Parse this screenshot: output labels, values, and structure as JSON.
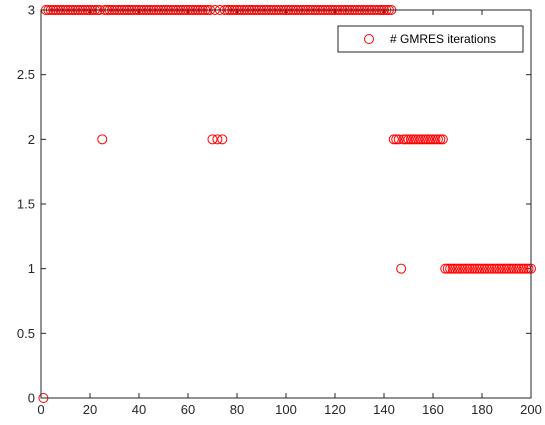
{
  "chart_data": {
    "type": "scatter",
    "title": "",
    "xlabel": "",
    "ylabel": "",
    "xlim": [
      0,
      200
    ],
    "ylim": [
      0,
      3
    ],
    "xticks": [
      0,
      20,
      40,
      60,
      80,
      100,
      120,
      140,
      160,
      180,
      200
    ],
    "yticks": [
      0,
      0.5,
      1,
      1.5,
      2,
      2.5,
      3
    ],
    "grid": false,
    "legend_position": "top-right",
    "marker": "circle-open",
    "marker_color": "#ff0000",
    "series": [
      {
        "name": "# GMRES iterations",
        "points": [
          [
            1,
            0
          ],
          [
            2,
            3
          ],
          [
            3,
            3
          ],
          [
            4,
            3
          ],
          [
            5,
            3
          ],
          [
            6,
            3
          ],
          [
            7,
            3
          ],
          [
            8,
            3
          ],
          [
            9,
            3
          ],
          [
            10,
            3
          ],
          [
            11,
            3
          ],
          [
            12,
            3
          ],
          [
            13,
            3
          ],
          [
            14,
            3
          ],
          [
            15,
            3
          ],
          [
            16,
            3
          ],
          [
            17,
            3
          ],
          [
            18,
            3
          ],
          [
            19,
            3
          ],
          [
            20,
            3
          ],
          [
            21,
            3
          ],
          [
            22,
            3
          ],
          [
            23,
            3
          ],
          [
            24,
            3
          ],
          [
            25,
            2
          ],
          [
            26,
            3
          ],
          [
            27,
            3
          ],
          [
            28,
            3
          ],
          [
            29,
            3
          ],
          [
            30,
            3
          ],
          [
            31,
            3
          ],
          [
            32,
            3
          ],
          [
            33,
            3
          ],
          [
            34,
            3
          ],
          [
            35,
            3
          ],
          [
            36,
            3
          ],
          [
            37,
            3
          ],
          [
            38,
            3
          ],
          [
            39,
            3
          ],
          [
            40,
            3
          ],
          [
            41,
            3
          ],
          [
            42,
            3
          ],
          [
            43,
            3
          ],
          [
            44,
            3
          ],
          [
            45,
            3
          ],
          [
            46,
            3
          ],
          [
            47,
            3
          ],
          [
            48,
            3
          ],
          [
            49,
            3
          ],
          [
            50,
            3
          ],
          [
            51,
            3
          ],
          [
            52,
            3
          ],
          [
            53,
            3
          ],
          [
            54,
            3
          ],
          [
            55,
            3
          ],
          [
            56,
            3
          ],
          [
            57,
            3
          ],
          [
            58,
            3
          ],
          [
            59,
            3
          ],
          [
            60,
            3
          ],
          [
            61,
            3
          ],
          [
            62,
            3
          ],
          [
            63,
            3
          ],
          [
            64,
            3
          ],
          [
            65,
            3
          ],
          [
            66,
            3
          ],
          [
            67,
            3
          ],
          [
            68,
            3
          ],
          [
            69,
            3
          ],
          [
            70,
            2
          ],
          [
            71,
            3
          ],
          [
            72,
            2
          ],
          [
            73,
            3
          ],
          [
            74,
            2
          ],
          [
            75,
            3
          ],
          [
            76,
            3
          ],
          [
            77,
            3
          ],
          [
            78,
            3
          ],
          [
            79,
            3
          ],
          [
            80,
            3
          ],
          [
            81,
            3
          ],
          [
            82,
            3
          ],
          [
            83,
            3
          ],
          [
            84,
            3
          ],
          [
            85,
            3
          ],
          [
            86,
            3
          ],
          [
            87,
            3
          ],
          [
            88,
            3
          ],
          [
            89,
            3
          ],
          [
            90,
            3
          ],
          [
            91,
            3
          ],
          [
            92,
            3
          ],
          [
            93,
            3
          ],
          [
            94,
            3
          ],
          [
            95,
            3
          ],
          [
            96,
            3
          ],
          [
            97,
            3
          ],
          [
            98,
            3
          ],
          [
            99,
            3
          ],
          [
            100,
            3
          ],
          [
            101,
            3
          ],
          [
            102,
            3
          ],
          [
            103,
            3
          ],
          [
            104,
            3
          ],
          [
            105,
            3
          ],
          [
            106,
            3
          ],
          [
            107,
            3
          ],
          [
            108,
            3
          ],
          [
            109,
            3
          ],
          [
            110,
            3
          ],
          [
            111,
            3
          ],
          [
            112,
            3
          ],
          [
            113,
            3
          ],
          [
            114,
            3
          ],
          [
            115,
            3
          ],
          [
            116,
            3
          ],
          [
            117,
            3
          ],
          [
            118,
            3
          ],
          [
            119,
            3
          ],
          [
            120,
            3
          ],
          [
            121,
            3
          ],
          [
            122,
            3
          ],
          [
            123,
            3
          ],
          [
            124,
            3
          ],
          [
            125,
            3
          ],
          [
            126,
            3
          ],
          [
            127,
            3
          ],
          [
            128,
            3
          ],
          [
            129,
            3
          ],
          [
            130,
            3
          ],
          [
            131,
            3
          ],
          [
            132,
            3
          ],
          [
            133,
            3
          ],
          [
            134,
            3
          ],
          [
            135,
            3
          ],
          [
            136,
            3
          ],
          [
            137,
            3
          ],
          [
            138,
            3
          ],
          [
            139,
            3
          ],
          [
            140,
            3
          ],
          [
            141,
            3
          ],
          [
            142,
            3
          ],
          [
            143,
            3
          ],
          [
            144,
            2
          ],
          [
            145,
            2
          ],
          [
            146,
            2
          ],
          [
            147,
            1
          ],
          [
            148,
            2
          ],
          [
            149,
            2
          ],
          [
            150,
            2
          ],
          [
            151,
            2
          ],
          [
            152,
            2
          ],
          [
            153,
            2
          ],
          [
            154,
            2
          ],
          [
            155,
            2
          ],
          [
            156,
            2
          ],
          [
            157,
            2
          ],
          [
            158,
            2
          ],
          [
            159,
            2
          ],
          [
            160,
            2
          ],
          [
            161,
            2
          ],
          [
            162,
            2
          ],
          [
            163,
            2
          ],
          [
            164,
            2
          ],
          [
            165,
            1
          ],
          [
            166,
            1
          ],
          [
            167,
            1
          ],
          [
            168,
            1
          ],
          [
            169,
            1
          ],
          [
            170,
            1
          ],
          [
            171,
            1
          ],
          [
            172,
            1
          ],
          [
            173,
            1
          ],
          [
            174,
            1
          ],
          [
            175,
            1
          ],
          [
            176,
            1
          ],
          [
            177,
            1
          ],
          [
            178,
            1
          ],
          [
            179,
            1
          ],
          [
            180,
            1
          ],
          [
            181,
            1
          ],
          [
            182,
            1
          ],
          [
            183,
            1
          ],
          [
            184,
            1
          ],
          [
            185,
            1
          ],
          [
            186,
            1
          ],
          [
            187,
            1
          ],
          [
            188,
            1
          ],
          [
            189,
            1
          ],
          [
            190,
            1
          ],
          [
            191,
            1
          ],
          [
            192,
            1
          ],
          [
            193,
            1
          ],
          [
            194,
            1
          ],
          [
            195,
            1
          ],
          [
            196,
            1
          ],
          [
            197,
            1
          ],
          [
            198,
            1
          ],
          [
            199,
            1
          ],
          [
            200,
            1
          ]
        ]
      }
    ]
  }
}
